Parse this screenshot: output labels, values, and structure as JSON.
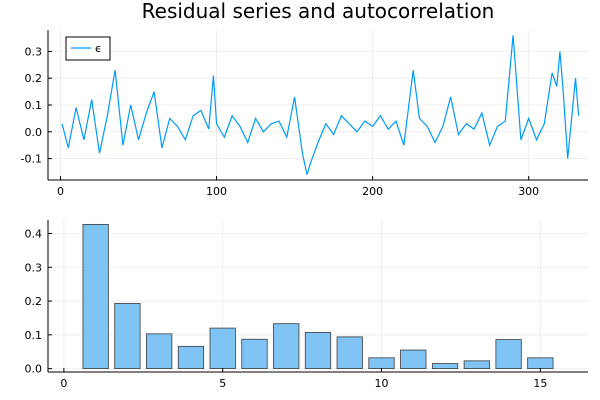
{
  "figure": {
    "title": "Residual series and autocorrelation"
  },
  "colors": {
    "series": "#009AFA",
    "bar_fill": "#7FC4F5",
    "bar_edge": "#3A3A3A",
    "axis": "#000000",
    "grid": "#EEEEEE"
  },
  "chart_data": [
    {
      "type": "line",
      "title": "Residual series and autocorrelation",
      "xlabel": "",
      "ylabel": "",
      "xlim": [
        -8,
        338
      ],
      "ylim": [
        -0.18,
        0.38
      ],
      "xticks": [
        0,
        100,
        200,
        300
      ],
      "yticks": [
        -0.1,
        0.0,
        0.1,
        0.2,
        0.3
      ],
      "ytick_labels": [
        "-0.1",
        "0.0",
        "0.1",
        "0.2",
        "0.3"
      ],
      "grid": true,
      "legend_position": "top-left",
      "series": [
        {
          "name": "ϵ",
          "x": [
            1,
            5,
            10,
            15,
            20,
            25,
            30,
            35,
            40,
            45,
            50,
            55,
            60,
            65,
            70,
            75,
            80,
            85,
            90,
            95,
            98,
            100,
            105,
            110,
            115,
            120,
            125,
            130,
            135,
            140,
            145,
            150,
            155,
            158,
            160,
            165,
            170,
            175,
            180,
            185,
            190,
            195,
            200,
            205,
            210,
            215,
            220,
            226,
            230,
            235,
            240,
            245,
            250,
            255,
            260,
            265,
            270,
            275,
            280,
            285,
            290,
            295,
            300,
            305,
            310,
            315,
            318,
            320,
            322,
            325,
            328,
            330,
            332
          ],
          "y": [
            0.03,
            -0.06,
            0.09,
            -0.03,
            0.12,
            -0.08,
            0.06,
            0.23,
            -0.05,
            0.1,
            -0.03,
            0.07,
            0.15,
            -0.06,
            0.05,
            0.02,
            -0.03,
            0.06,
            0.08,
            0.01,
            0.21,
            0.03,
            -0.02,
            0.06,
            0.02,
            -0.04,
            0.05,
            0.0,
            0.03,
            0.04,
            -0.02,
            0.13,
            -0.08,
            -0.16,
            -0.12,
            -0.04,
            0.03,
            -0.01,
            0.06,
            0.03,
            0.0,
            0.04,
            0.02,
            0.06,
            0.01,
            0.04,
            -0.05,
            0.23,
            0.05,
            0.02,
            -0.04,
            0.02,
            0.13,
            -0.01,
            0.03,
            0.01,
            0.07,
            -0.05,
            0.02,
            0.04,
            0.36,
            -0.03,
            0.05,
            -0.03,
            0.03,
            0.22,
            0.17,
            0.3,
            0.16,
            -0.1,
            0.08,
            0.2,
            0.06
          ]
        }
      ]
    },
    {
      "type": "bar",
      "title": "",
      "xlabel": "",
      "ylabel": "",
      "xlim": [
        -0.5,
        16.5
      ],
      "ylim": [
        -0.01,
        0.44
      ],
      "xticks": [
        0,
        5,
        10,
        15
      ],
      "yticks": [
        0.0,
        0.1,
        0.2,
        0.3,
        0.4
      ],
      "ytick_labels": [
        "0.0",
        "0.1",
        "0.2",
        "0.3",
        "0.4"
      ],
      "grid": true,
      "legend_position": "none",
      "categories": [
        1,
        2,
        3,
        4,
        5,
        6,
        7,
        8,
        9,
        10,
        11,
        12,
        13,
        14,
        15
      ],
      "values": [
        0.427,
        0.193,
        0.103,
        0.066,
        0.12,
        0.087,
        0.133,
        0.107,
        0.094,
        0.032,
        0.055,
        0.015,
        0.023,
        0.086,
        0.032
      ]
    }
  ]
}
